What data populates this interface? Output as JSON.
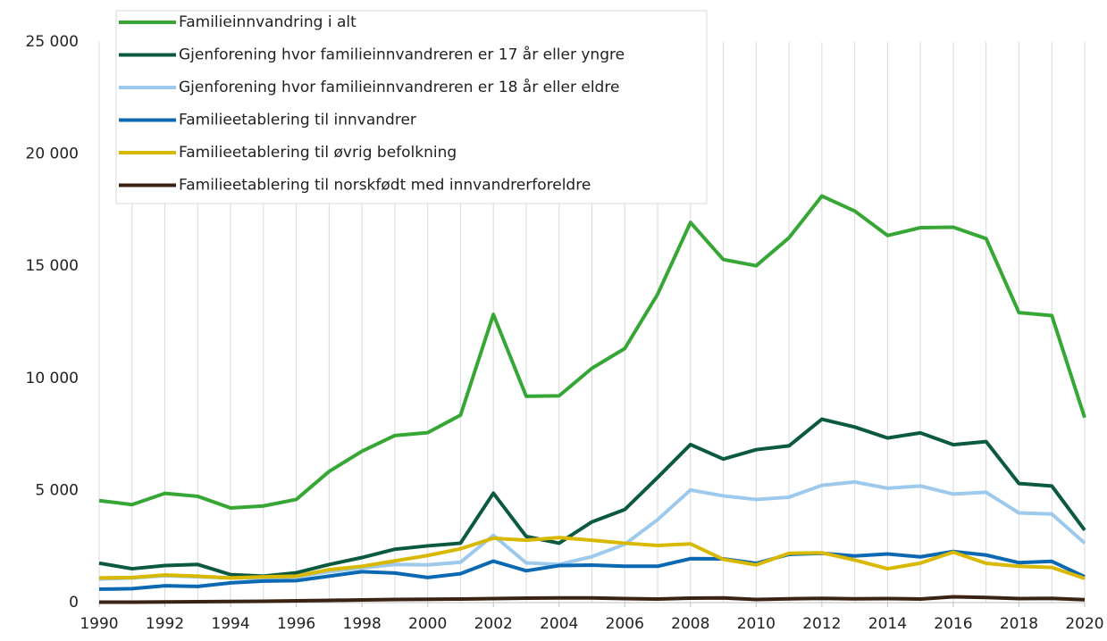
{
  "chart_data": {
    "type": "line",
    "x": [
      1990,
      1991,
      1992,
      1993,
      1994,
      1995,
      1996,
      1997,
      1998,
      1999,
      2000,
      2001,
      2002,
      2003,
      2004,
      2005,
      2006,
      2007,
      2008,
      2009,
      2010,
      2011,
      2012,
      2013,
      2014,
      2015,
      2016,
      2017,
      2018,
      2019,
      2020
    ],
    "xlim": [
      1990,
      2020
    ],
    "xticks": [
      1990,
      1992,
      1994,
      1996,
      1998,
      2000,
      2002,
      2004,
      2006,
      2008,
      2010,
      2012,
      2014,
      2016,
      2018,
      2020
    ],
    "ylim": [
      0,
      25000
    ],
    "yticks": [
      0,
      {
        "value": 5000,
        "label": "5 000"
      },
      {
        "value": 10000,
        "label": "10 000"
      },
      {
        "value": 15000,
        "label": "15 000"
      },
      {
        "value": 20000,
        "label": "20 000"
      },
      {
        "value": 25000,
        "label": "25 000"
      }
    ],
    "grid": "x",
    "legend": "top-left",
    "series": [
      {
        "name": "Familieinnvandring i alt",
        "color": "#36a635",
        "values": [
          4550,
          4370,
          4870,
          4740,
          4220,
          4310,
          4600,
          5850,
          6750,
          7450,
          7580,
          8360,
          12850,
          9200,
          9220,
          10450,
          11330,
          13750,
          16950,
          15300,
          15020,
          16270,
          18130,
          17460,
          16370,
          16720,
          16740,
          16230,
          12930,
          12800,
          8250
        ]
      },
      {
        "name": "Gjenforening hvor familieinnvandreren er 17 år eller yngre",
        "color": "#0b5a40",
        "values": [
          1760,
          1510,
          1650,
          1700,
          1250,
          1180,
          1330,
          1700,
          2010,
          2380,
          2530,
          2650,
          4880,
          2950,
          2650,
          3600,
          4150,
          5580,
          7050,
          6400,
          6820,
          6990,
          8180,
          7830,
          7340,
          7570,
          7040,
          7180,
          5310,
          5200,
          3230
        ]
      },
      {
        "name": "Gjenforening hvor familieinnvandreren er 18 år eller eldre",
        "color": "#9dc9ec",
        "values": [
          1050,
          1100,
          1200,
          1150,
          1100,
          1100,
          1150,
          1380,
          1550,
          1700,
          1680,
          1800,
          3000,
          1770,
          1700,
          2050,
          2600,
          3700,
          5020,
          4760,
          4600,
          4700,
          5230,
          5380,
          5100,
          5200,
          4840,
          4920,
          4000,
          3950,
          2650
        ]
      },
      {
        "name": "Familieetablering til innvandrer",
        "color": "#0b68b2",
        "values": [
          600,
          620,
          750,
          720,
          880,
          960,
          980,
          1180,
          1380,
          1320,
          1120,
          1290,
          1850,
          1420,
          1650,
          1670,
          1620,
          1620,
          1960,
          1950,
          1750,
          2150,
          2200,
          2080,
          2170,
          2040,
          2280,
          2120,
          1780,
          1840,
          1150
        ]
      },
      {
        "name": "Familieetablering til øvrig befolkning",
        "color": "#d8b800",
        "values": [
          1100,
          1120,
          1230,
          1180,
          1100,
          1150,
          1180,
          1470,
          1620,
          1860,
          2100,
          2400,
          2870,
          2780,
          2900,
          2780,
          2650,
          2550,
          2620,
          1930,
          1680,
          2200,
          2220,
          1900,
          1510,
          1760,
          2250,
          1750,
          1620,
          1570,
          1080
        ]
      },
      {
        "name": "Familieetablering til norskfødt med innvandrerforeldre",
        "color": "#3b2314",
        "values": [
          20,
          20,
          30,
          40,
          50,
          60,
          80,
          100,
          120,
          140,
          150,
          160,
          180,
          200,
          210,
          210,
          180,
          160,
          200,
          210,
          140,
          170,
          190,
          170,
          180,
          160,
          260,
          230,
          180,
          190,
          130
        ]
      }
    ]
  }
}
